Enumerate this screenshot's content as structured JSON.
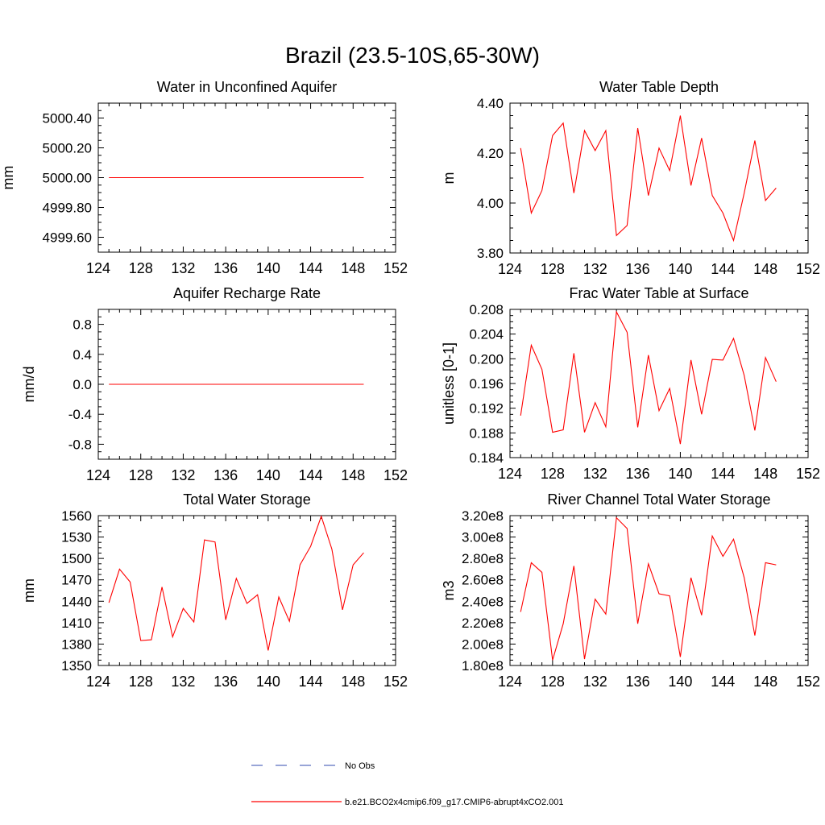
{
  "figure": {
    "title": "Brazil (23.5-10S,65-30W)"
  },
  "legend": {
    "placement": "bottom-center",
    "items": [
      {
        "label": "No Obs",
        "color": "#5a6fbf",
        "style": "dashed"
      },
      {
        "label": "b.e21.BCO2x4cmip6.f09_g17.CMIP6-abrupt4xCO2.001",
        "color": "#ff0000",
        "style": "solid"
      }
    ]
  },
  "chart_data": [
    {
      "type": "line",
      "title": "Water in Unconfined Aquifer",
      "ylabel": "mm",
      "xlim": [
        124,
        152
      ],
      "ylim": [
        4999.5,
        5000.5
      ],
      "xticks": [
        124,
        128,
        132,
        136,
        140,
        144,
        148,
        152
      ],
      "xtick_labels": [
        "124",
        "128",
        "132",
        "136",
        "140",
        "144",
        "148",
        "152"
      ],
      "yticks": [
        4999.6,
        4999.8,
        5000.0,
        5000.2,
        5000.4
      ],
      "ytick_labels": [
        "4999.60",
        "4999.80",
        "5000.00",
        "5000.20",
        "5000.40"
      ],
      "series": [
        {
          "color": "#ff0000",
          "x": [
            125,
            126,
            127,
            128,
            129,
            130,
            131,
            132,
            133,
            134,
            135,
            136,
            137,
            138,
            139,
            140,
            141,
            142,
            143,
            144,
            145,
            146,
            147,
            148,
            149
          ],
          "y": [
            5000,
            5000,
            5000,
            5000,
            5000,
            5000,
            5000,
            5000,
            5000,
            5000,
            5000,
            5000,
            5000,
            5000,
            5000,
            5000,
            5000,
            5000,
            5000,
            5000,
            5000,
            5000,
            5000,
            5000,
            5000
          ]
        }
      ]
    },
    {
      "type": "line",
      "title": "Water Table Depth",
      "ylabel": "m",
      "xlim": [
        124,
        152
      ],
      "ylim": [
        3.8,
        4.4
      ],
      "xticks": [
        124,
        128,
        132,
        136,
        140,
        144,
        148,
        152
      ],
      "xtick_labels": [
        "124",
        "128",
        "132",
        "136",
        "140",
        "144",
        "148",
        "152"
      ],
      "yticks": [
        3.8,
        4.0,
        4.2,
        4.4
      ],
      "ytick_labels": [
        "3.80",
        "4.00",
        "4.20",
        "4.40"
      ],
      "series": [
        {
          "color": "#ff0000",
          "x": [
            125,
            126,
            127,
            128,
            129,
            130,
            131,
            132,
            133,
            134,
            135,
            136,
            137,
            138,
            139,
            140,
            141,
            142,
            143,
            144,
            145,
            146,
            147,
            148,
            149
          ],
          "y": [
            4.22,
            3.96,
            4.05,
            4.27,
            4.32,
            4.04,
            4.29,
            4.21,
            4.29,
            3.87,
            3.91,
            4.3,
            4.03,
            4.22,
            4.13,
            4.35,
            4.07,
            4.26,
            4.03,
            3.96,
            3.85,
            4.04,
            4.25,
            4.01,
            4.06
          ]
        }
      ]
    },
    {
      "type": "line",
      "title": "Aquifer Recharge Rate",
      "ylabel": "mm/d",
      "xlim": [
        124,
        152
      ],
      "ylim": [
        -1.0,
        1.0
      ],
      "xticks": [
        124,
        128,
        132,
        136,
        140,
        144,
        148,
        152
      ],
      "xtick_labels": [
        "124",
        "128",
        "132",
        "136",
        "140",
        "144",
        "148",
        "152"
      ],
      "yticks": [
        -0.8,
        -0.4,
        0.0,
        0.4,
        0.8
      ],
      "ytick_labels": [
        "-0.8",
        "-0.4",
        "0.0",
        "0.4",
        "0.8"
      ],
      "series": [
        {
          "color": "#ff0000",
          "x": [
            125,
            126,
            127,
            128,
            129,
            130,
            131,
            132,
            133,
            134,
            135,
            136,
            137,
            138,
            139,
            140,
            141,
            142,
            143,
            144,
            145,
            146,
            147,
            148,
            149
          ],
          "y": [
            0,
            0,
            0,
            0,
            0,
            0,
            0,
            0,
            0,
            0,
            0,
            0,
            0,
            0,
            0,
            0,
            0,
            0,
            0,
            0,
            0,
            0,
            0,
            0,
            0
          ]
        }
      ]
    },
    {
      "type": "line",
      "title": "Frac Water Table at Surface",
      "ylabel": "unitless [0-1]",
      "xlim": [
        124,
        152
      ],
      "ylim": [
        0.184,
        0.208
      ],
      "xticks": [
        124,
        128,
        132,
        136,
        140,
        144,
        148,
        152
      ],
      "xtick_labels": [
        "124",
        "128",
        "132",
        "136",
        "140",
        "144",
        "148",
        "152"
      ],
      "yticks": [
        0.184,
        0.188,
        0.192,
        0.196,
        0.2,
        0.204,
        0.208
      ],
      "ytick_labels": [
        "0.184",
        "0.188",
        "0.192",
        "0.196",
        "0.200",
        "0.204",
        "0.208"
      ],
      "series": [
        {
          "color": "#ff0000",
          "x": [
            125,
            126,
            127,
            128,
            129,
            130,
            131,
            132,
            133,
            134,
            135,
            136,
            137,
            138,
            139,
            140,
            141,
            142,
            143,
            144,
            145,
            146,
            147,
            148,
            149
          ],
          "y": [
            0.1908,
            0.2022,
            0.1983,
            0.1881,
            0.1885,
            0.2009,
            0.1881,
            0.1929,
            0.189,
            0.2076,
            0.2043,
            0.1889,
            0.2006,
            0.1916,
            0.1952,
            0.1862,
            0.1998,
            0.191,
            0.1999,
            0.1998,
            0.2033,
            0.1973,
            0.1884,
            0.2002,
            0.1963
          ]
        }
      ]
    },
    {
      "type": "line",
      "title": "Total Water Storage",
      "ylabel": "mm",
      "xlim": [
        124,
        152
      ],
      "ylim": [
        1350,
        1560
      ],
      "xticks": [
        124,
        128,
        132,
        136,
        140,
        144,
        148,
        152
      ],
      "xtick_labels": [
        "124",
        "128",
        "132",
        "136",
        "140",
        "144",
        "148",
        "152"
      ],
      "yticks": [
        1350,
        1380,
        1410,
        1440,
        1470,
        1500,
        1530,
        1560
      ],
      "ytick_labels": [
        "1350",
        "1380",
        "1410",
        "1440",
        "1470",
        "1500",
        "1530",
        "1560"
      ],
      "series": [
        {
          "color": "#ff0000",
          "x": [
            125,
            126,
            127,
            128,
            129,
            130,
            131,
            132,
            133,
            134,
            135,
            136,
            137,
            138,
            139,
            140,
            141,
            142,
            143,
            144,
            145,
            146,
            147,
            148,
            149
          ],
          "y": [
            1438,
            1485,
            1467,
            1385,
            1386,
            1460,
            1390,
            1430,
            1411,
            1526,
            1523,
            1414,
            1472,
            1437,
            1449,
            1371,
            1446,
            1412,
            1491,
            1517,
            1559,
            1513,
            1428,
            1491,
            1508
          ]
        }
      ]
    },
    {
      "type": "line",
      "title": "River Channel Total Water Storage",
      "ylabel": "m3",
      "xlim": [
        124,
        152
      ],
      "ylim": [
        180000000.0,
        320000000.0
      ],
      "xticks": [
        124,
        128,
        132,
        136,
        140,
        144,
        148,
        152
      ],
      "xtick_labels": [
        "124",
        "128",
        "132",
        "136",
        "140",
        "144",
        "148",
        "152"
      ],
      "yticks": [
        180000000.0,
        200000000.0,
        220000000.0,
        240000000.0,
        260000000.0,
        280000000.0,
        300000000.0,
        320000000.0
      ],
      "ytick_labels": [
        "1.80e8",
        "2.00e8",
        "2.20e8",
        "2.40e8",
        "2.60e8",
        "2.80e8",
        "3.00e8",
        "3.20e8"
      ],
      "series": [
        {
          "color": "#ff0000",
          "x": [
            125,
            126,
            127,
            128,
            129,
            130,
            131,
            132,
            133,
            134,
            135,
            136,
            137,
            138,
            139,
            140,
            141,
            142,
            143,
            144,
            145,
            146,
            147,
            148,
            149
          ],
          "y": [
            230000000.0,
            276000000.0,
            267000000.0,
            185000000.0,
            219000000.0,
            273000000.0,
            186000000.0,
            242000000.0,
            228000000.0,
            318000000.0,
            308000000.0,
            219000000.0,
            275000000.0,
            247000000.0,
            245000000.0,
            188000000.0,
            262000000.0,
            227000000.0,
            301000000.0,
            282000000.0,
            298000000.0,
            262000000.0,
            208000000.0,
            276000000.0,
            274000000.0
          ]
        }
      ]
    }
  ]
}
